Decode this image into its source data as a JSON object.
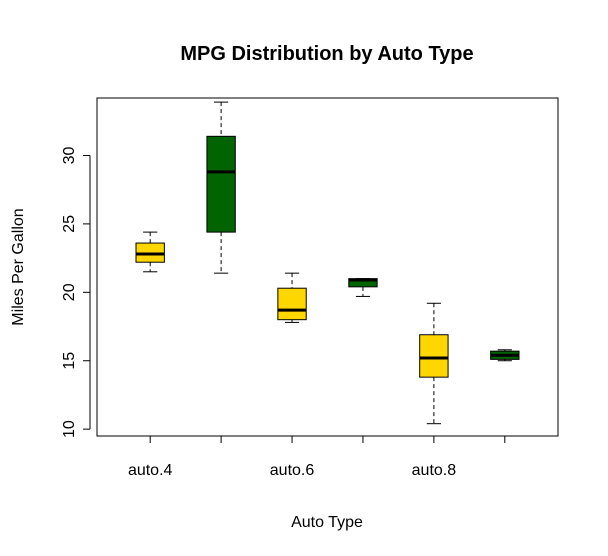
{
  "chart_data": {
    "type": "boxplot",
    "title": "MPG Distribution by Auto Type",
    "xlabel": "Auto Type",
    "ylabel": "Miles Per Gallon",
    "ylim": [
      9.5,
      34.2
    ],
    "y_ticks": [
      10,
      15,
      20,
      25,
      30
    ],
    "x_tick_labels": [
      "auto.4",
      "",
      "auto.6",
      "",
      "auto.8",
      ""
    ],
    "grid": false,
    "colors": {
      "yellow": "#FFD700",
      "green": "#006400"
    },
    "boxes": [
      {
        "category": "auto.4",
        "min": 21.5,
        "q1": 22.2,
        "median": 22.8,
        "q3": 23.6,
        "max": 24.4,
        "color": "yellow"
      },
      {
        "category": "",
        "min": 21.4,
        "q1": 24.4,
        "median": 28.8,
        "q3": 31.4,
        "max": 33.9,
        "color": "green"
      },
      {
        "category": "auto.6",
        "min": 17.8,
        "q1": 18.0,
        "median": 18.7,
        "q3": 20.3,
        "max": 21.4,
        "color": "yellow"
      },
      {
        "category": "",
        "min": 19.7,
        "q1": 20.4,
        "median": 20.9,
        "q3": 21.0,
        "max": 21.0,
        "color": "green"
      },
      {
        "category": "auto.8",
        "min": 10.4,
        "q1": 13.8,
        "median": 15.2,
        "q3": 16.9,
        "max": 19.2,
        "color": "yellow"
      },
      {
        "category": "",
        "min": 15.0,
        "q1": 15.1,
        "median": 15.4,
        "q3": 15.7,
        "max": 15.8,
        "color": "green"
      }
    ]
  }
}
